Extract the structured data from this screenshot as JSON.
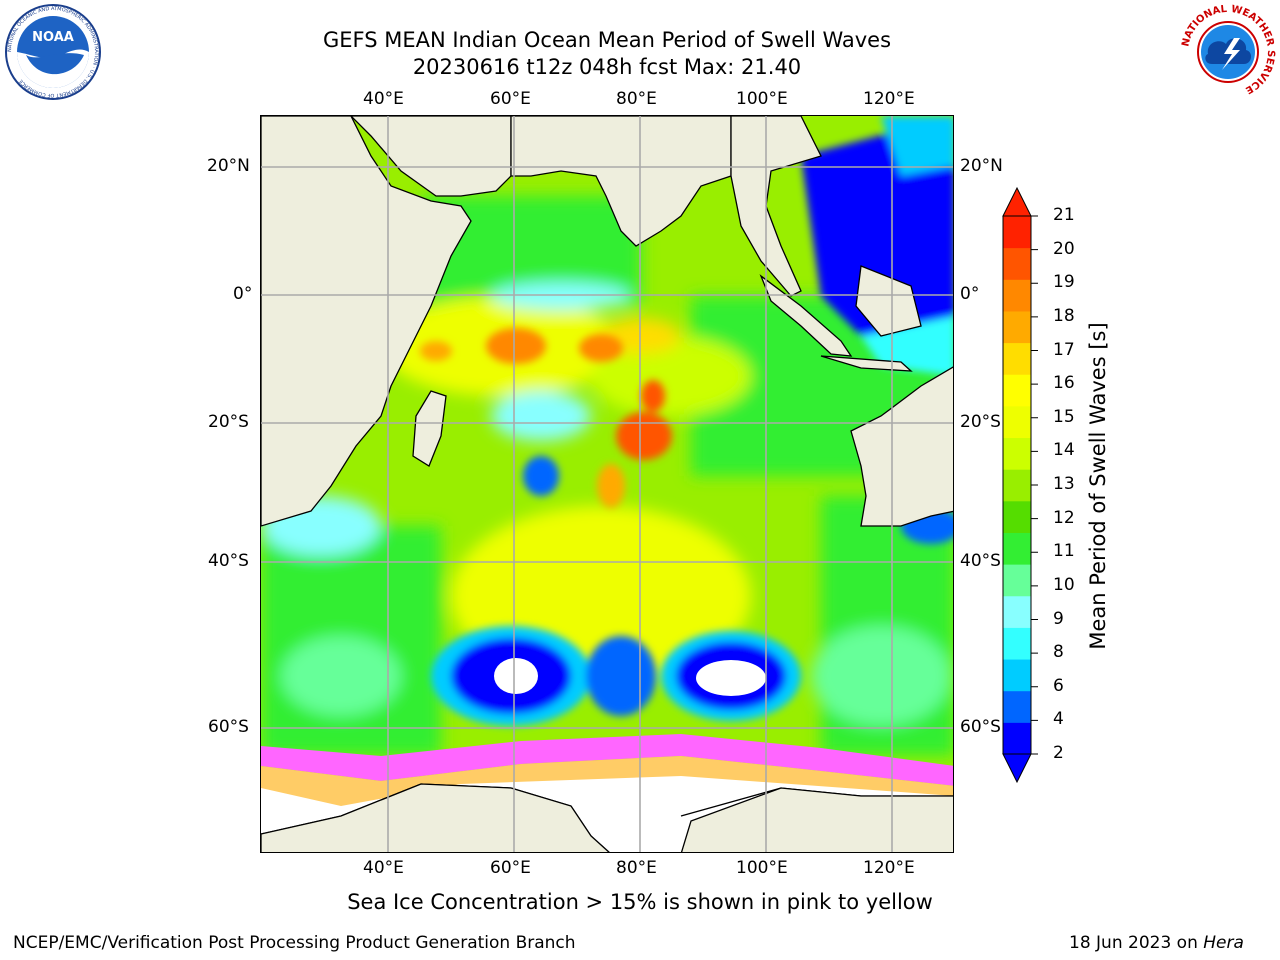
{
  "header": {
    "title_line1": "GEFS MEAN Indian Ocean Mean Period of Swell Waves",
    "title_line2": "20230616 t12z 048h fcst   Max: 21.40"
  },
  "logos": {
    "left": "NOAA",
    "left_ring_text": "NATIONAL OCEANIC AND ATMOSPHERIC ADMINISTRATION · U.S. DEPARTMENT OF COMMERCE",
    "right_ring_text": "NATIONAL WEATHER SERVICE"
  },
  "map": {
    "lon_labels": [
      "40°E",
      "60°E",
      "80°E",
      "100°E",
      "120°E"
    ],
    "lat_labels": [
      "20°N",
      "0°",
      "20°S",
      "40°S",
      "60°S"
    ],
    "colors": {
      "land": "#eeeedd",
      "ice_pink": "#ff66ff",
      "ice_yellow": "#ffcc66"
    }
  },
  "colorbar": {
    "label": "Mean Period of Swell Waves [s]",
    "ticks": [
      "2",
      "4",
      "6",
      "8",
      "9",
      "10",
      "11",
      "12",
      "13",
      "14",
      "15",
      "16",
      "17",
      "18",
      "19",
      "20",
      "21"
    ],
    "colors": [
      "#0000ff",
      "#0066ff",
      "#00ccff",
      "#33ffff",
      "#88ffff",
      "#66ff99",
      "#33ee33",
      "#55dd00",
      "#99ee00",
      "#ccff00",
      "#eeff00",
      "#ffff00",
      "#ffdd00",
      "#ffaa00",
      "#ff8800",
      "#ff5500",
      "#ff2200"
    ]
  },
  "note": "Sea Ice Concentration > 15% is shown in pink to yellow",
  "footer": {
    "left": "NCEP/EMC/Verification Post Processing Product Generation Branch",
    "right_date": "18 Jun 2023 on ",
    "right_host": "Hera"
  }
}
